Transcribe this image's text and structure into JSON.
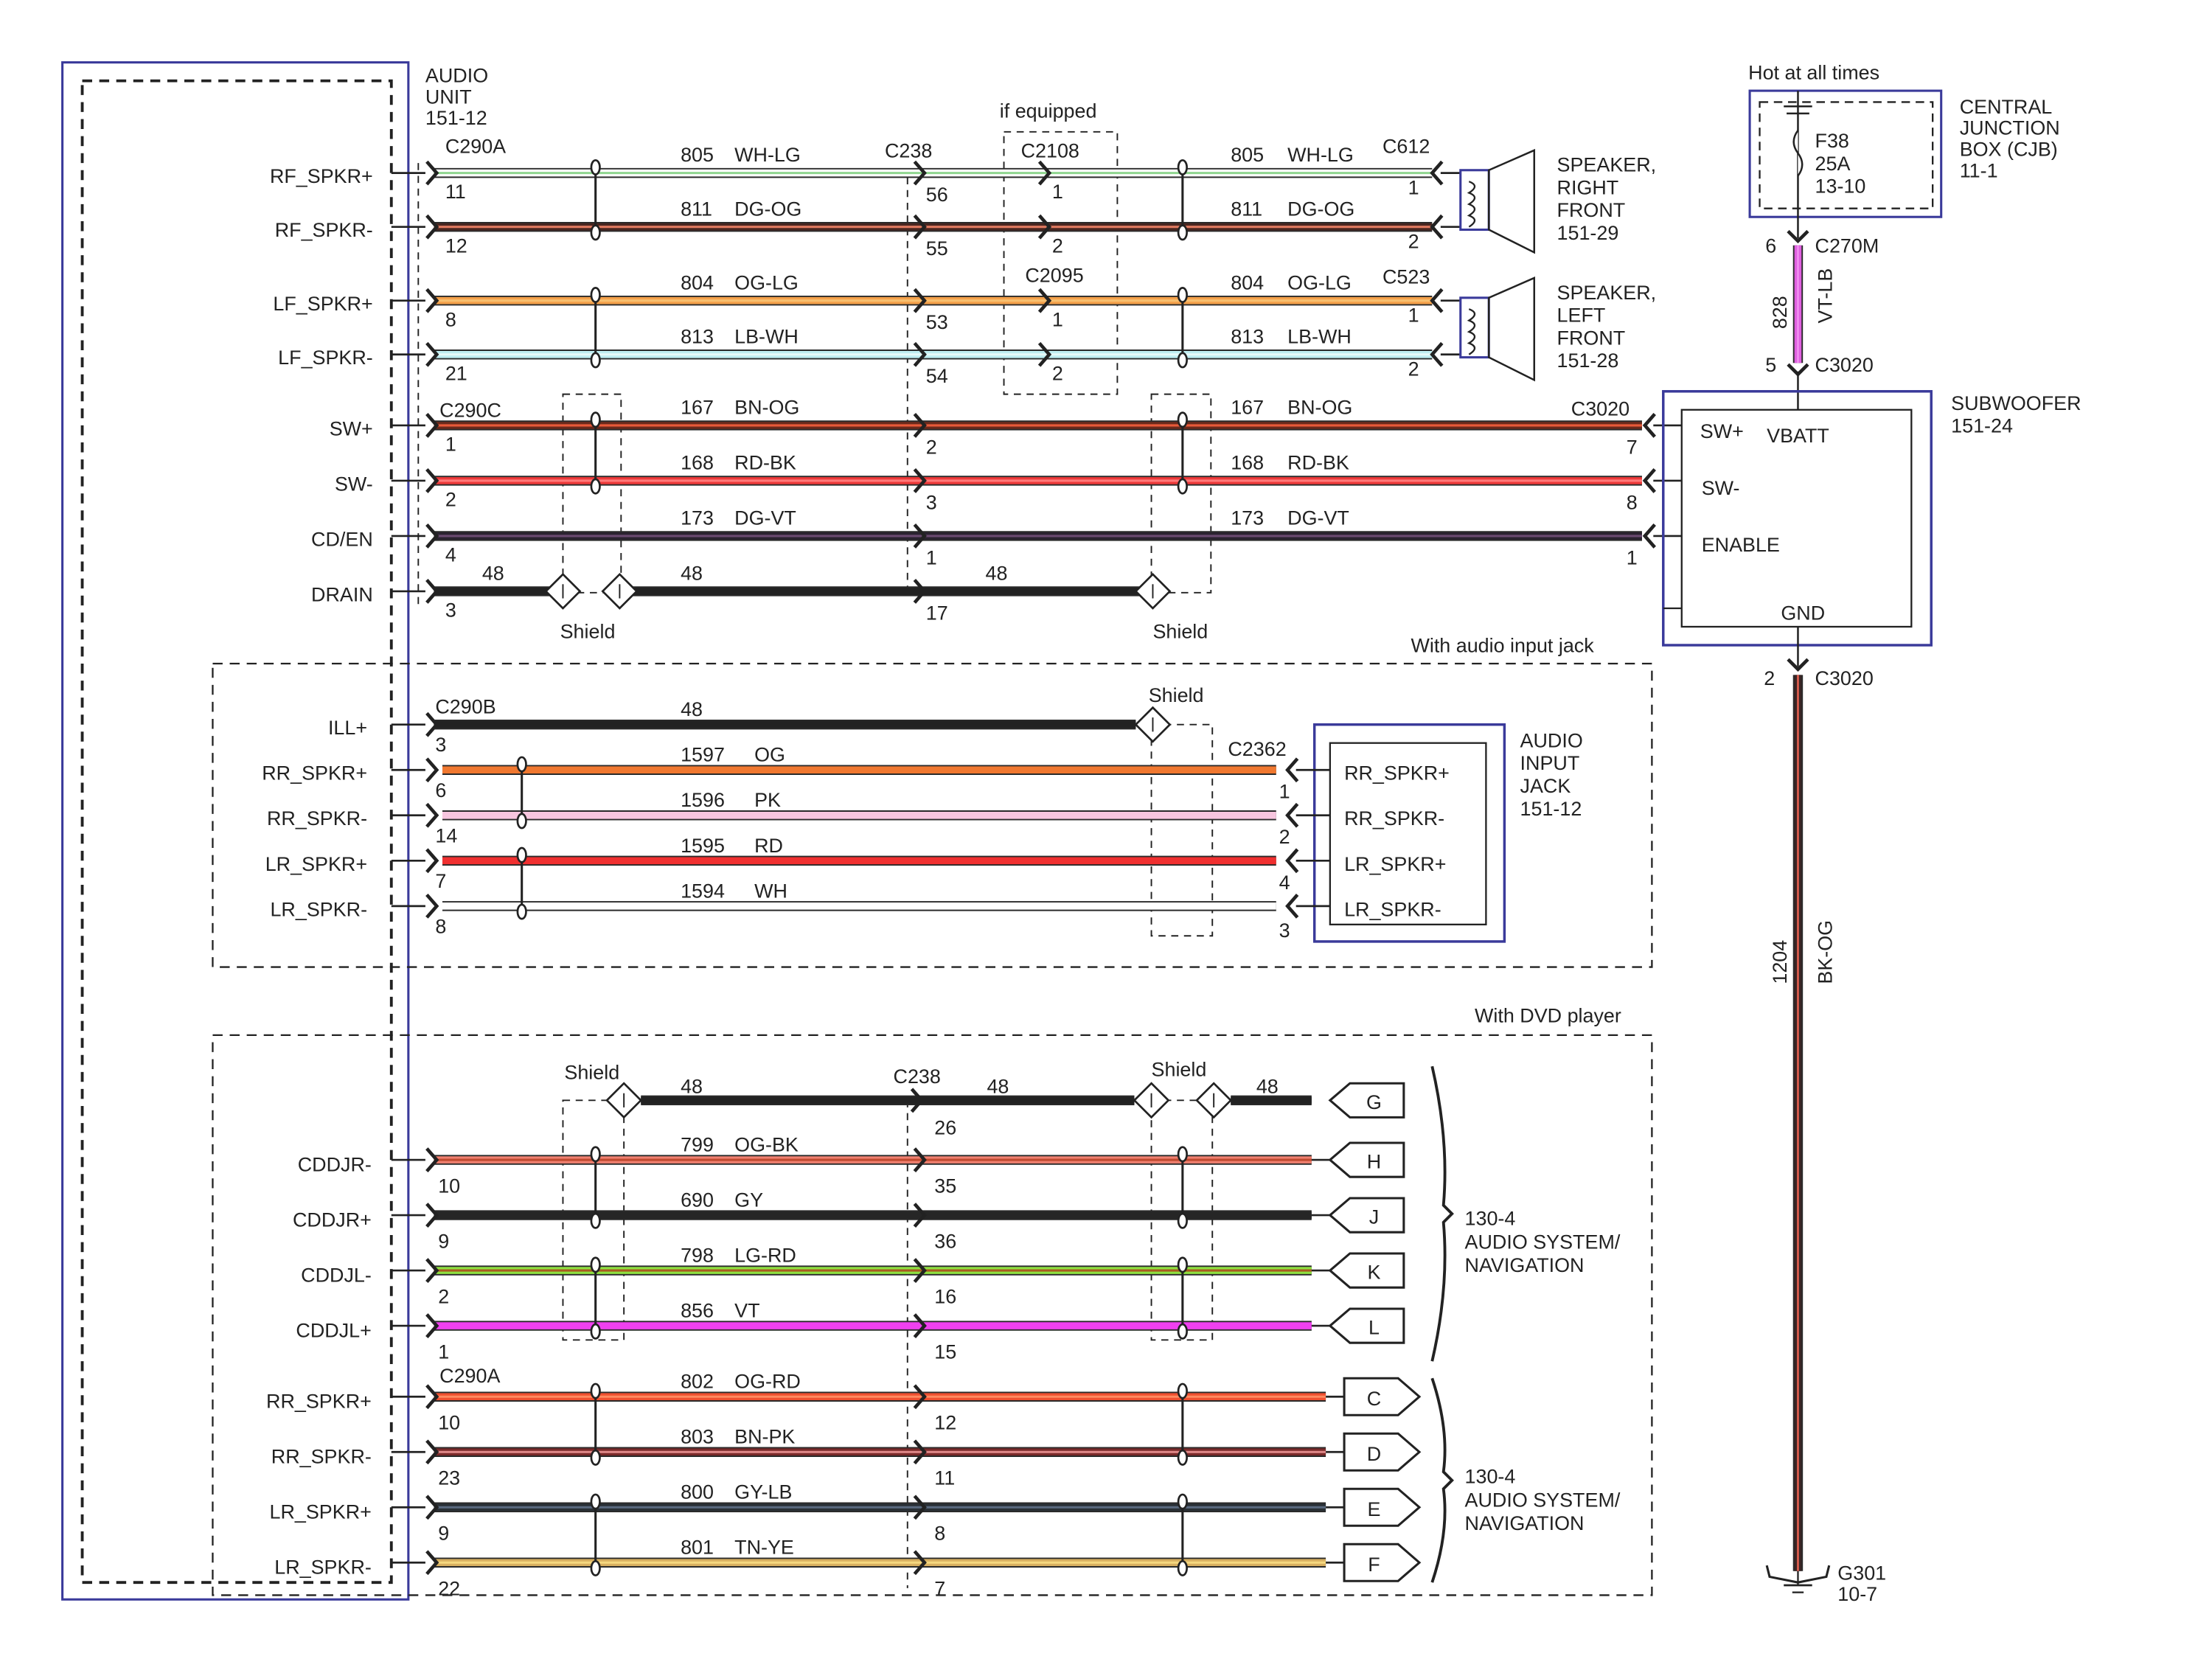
{
  "audio_unit": {
    "label": [
      "AUDIO",
      "UNIT",
      "151-12"
    ]
  },
  "main": {
    "connectors": {
      "left_a": "C290A",
      "left_c": "C290C",
      "mid": "C238",
      "optional_note": "if equipped",
      "opt_rf": "C2108",
      "opt_lf": "C2095",
      "rf_speaker": "C612",
      "lf_speaker": "C523",
      "subwoofer": "C3020"
    },
    "shield_label": "Shield",
    "wires": [
      {
        "signal": "RF_SPKR+",
        "left_pin": "11",
        "circuit": "805",
        "color": "WH-LG",
        "mid_pin": "56",
        "opt_pin": "1",
        "right_pin": "1",
        "colors": {
          "main": "#ffffff",
          "stripe": "#8fd68f"
        }
      },
      {
        "signal": "RF_SPKR-",
        "left_pin": "12",
        "circuit": "811",
        "color": "DG-OG",
        "mid_pin": "55",
        "opt_pin": "2",
        "right_pin": "2",
        "colors": {
          "main": "#4a2620",
          "stripe": "#e07a60"
        }
      },
      {
        "signal": "LF_SPKR+",
        "left_pin": "8",
        "circuit": "804",
        "color": "OG-LG",
        "mid_pin": "53",
        "opt_pin": "1",
        "right_pin": "1",
        "colors": {
          "main": "#f4a04a",
          "stripe": "#f8c070"
        }
      },
      {
        "signal": "LF_SPKR-",
        "left_pin": "21",
        "circuit": "813",
        "color": "LB-WH",
        "mid_pin": "54",
        "opt_pin": "2",
        "right_pin": "2",
        "colors": {
          "main": "#bfeef2",
          "stripe": "#e8fafa"
        }
      },
      {
        "signal": "SW+",
        "left_pin": "1",
        "circuit": "167",
        "color": "BN-OG",
        "mid_pin": "2",
        "right_pin": "7",
        "colors": {
          "main": "#6b2a1c",
          "stripe": "#e85a3a"
        }
      },
      {
        "signal": "SW-",
        "left_pin": "2",
        "circuit": "168",
        "color": "RD-BK",
        "mid_pin": "3",
        "right_pin": "8",
        "colors": {
          "main": "#ee3a3a",
          "stripe": "#ff7a7a"
        }
      },
      {
        "signal": "CD/EN",
        "left_pin": "4",
        "circuit": "173",
        "color": "DG-VT",
        "mid_pin": "1",
        "right_pin": "1",
        "colors": {
          "main": "#2a2230",
          "stripe": "#6a4a70"
        }
      },
      {
        "signal": "DRAIN",
        "left_pin": "3",
        "circuit": "48",
        "mid_pin": "17",
        "colors": {
          "main": "#222222"
        }
      }
    ]
  },
  "speakers": [
    {
      "label": [
        "SPEAKER,",
        "RIGHT",
        "FRONT",
        "151-29"
      ]
    },
    {
      "label": [
        "SPEAKER,",
        "LEFT",
        "FRONT",
        "151-28"
      ]
    }
  ],
  "cjb": {
    "note": "Hot at all times",
    "fuse": [
      "F38",
      "25A",
      "13-10"
    ],
    "label": [
      "CENTRAL",
      "JUNCTION",
      "BOX (CJB)",
      "11-1"
    ]
  },
  "power_wire": {
    "top_pin": "6",
    "top_connector": "C270M",
    "circuit": "828",
    "color": "VT-LB",
    "bottom_pin": "5",
    "bottom_connector": "C3020",
    "colors": {
      "main": "#e060e0",
      "stripe": "#f090f0"
    }
  },
  "subwoofer": {
    "label": [
      "SUBWOOFER",
      "151-24"
    ],
    "pins": {
      "sw_plus": "SW+",
      "vbatt": "VBATT",
      "sw_minus": "SW-",
      "enable": "ENABLE",
      "gnd": "GND"
    }
  },
  "ground_wire": {
    "pin": "2",
    "connector": "C3020",
    "circuit": "1204",
    "color": "BK-OG",
    "ground": [
      "G301",
      "10-7"
    ],
    "colors": {
      "main": "#3a2626",
      "stripe": "#e06050"
    }
  },
  "audio_input": {
    "title": "With audio input jack",
    "left_connector": "C290B",
    "right_connector": "C2362",
    "shield_label": "Shield",
    "jack_label": [
      "AUDIO",
      "INPUT",
      "JACK",
      "151-12"
    ],
    "extra_pin": "3",
    "wires": [
      {
        "signal": "ILL+",
        "left_pin": "3",
        "circuit": "48",
        "color": "",
        "colors": {
          "main": "#222222"
        }
      },
      {
        "signal": "RR_SPKR+",
        "left_pin": "6",
        "circuit": "1597",
        "color": "OG",
        "jack_pin": "RR_SPKR+",
        "colors": {
          "main": "#f07830"
        }
      },
      {
        "signal": "RR_SPKR-",
        "left_pin": "14",
        "circuit": "1596",
        "color": "PK",
        "right_pin": "1",
        "jack_pin": "RR_SPKR-",
        "colors": {
          "main": "#f7c6df"
        }
      },
      {
        "signal": "LR_SPKR+",
        "left_pin": "7",
        "circuit": "1595",
        "color": "RD",
        "right_pin": "2",
        "jack_pin": "LR_SPKR+",
        "colors": {
          "main": "#f03030"
        }
      },
      {
        "signal": "LR_SPKR-",
        "left_pin": "8",
        "circuit": "1594",
        "color": "WH",
        "right_pin": "4",
        "jack_pin": "LR_SPKR-",
        "colors": {
          "main": "#ffffff"
        }
      }
    ]
  },
  "dvd": {
    "title": "With DVD player",
    "shield_label": "Shield",
    "mid_connector": "C238",
    "left_connector": "C290A",
    "drain": {
      "circuit": "48",
      "mid_pin": "26",
      "tag": "G"
    },
    "destination": [
      "130-4",
      "AUDIO SYSTEM/",
      "NAVIGATION"
    ],
    "wires": [
      {
        "signal": "CDDJR-",
        "left_pin": "10",
        "circuit": "799",
        "color": "OG-BK",
        "mid_pin": "35",
        "tag": "H",
        "colors": {
          "main": "#f08070",
          "stripe": "#c04a30"
        }
      },
      {
        "signal": "CDDJR+",
        "left_pin": "9",
        "circuit": "690",
        "color": "GY",
        "mid_pin": "36",
        "tag": "J",
        "colors": {
          "main": "#262626"
        }
      },
      {
        "signal": "CDDJL-",
        "left_pin": "2",
        "circuit": "798",
        "color": "LG-RD",
        "mid_pin": "16",
        "tag": "K",
        "colors": {
          "main": "#8ee040",
          "stripe": "#a85a20"
        }
      },
      {
        "signal": "CDDJL+",
        "left_pin": "1",
        "circuit": "856",
        "color": "VT",
        "mid_pin": "15",
        "tag": "L",
        "colors": {
          "main": "#f040f0"
        }
      },
      {
        "signal": "RR_SPKR+",
        "left_pin": "10",
        "circuit": "802",
        "color": "OG-RD",
        "mid_pin": "12",
        "tag": "C",
        "colors": {
          "main": "#f05030",
          "stripe": "#ff8a60"
        }
      },
      {
        "signal": "RR_SPKR-",
        "left_pin": "23",
        "circuit": "803",
        "color": "BN-PK",
        "mid_pin": "11",
        "tag": "D",
        "colors": {
          "main": "#7a2a2a",
          "stripe": "#e08a8a"
        }
      },
      {
        "signal": "LR_SPKR+",
        "left_pin": "9",
        "circuit": "800",
        "color": "GY-LB",
        "mid_pin": "8",
        "tag": "E",
        "colors": {
          "main": "#2a3036",
          "stripe": "#5a6a80"
        }
      },
      {
        "signal": "LR_SPKR-",
        "left_pin": "22",
        "circuit": "801",
        "color": "TN-YE",
        "mid_pin": "7",
        "tag": "F",
        "colors": {
          "main": "#d8b060",
          "stripe": "#f4d880"
        }
      }
    ]
  },
  "theme": {
    "module_border": "#3a3a9a",
    "line": "#222222"
  }
}
